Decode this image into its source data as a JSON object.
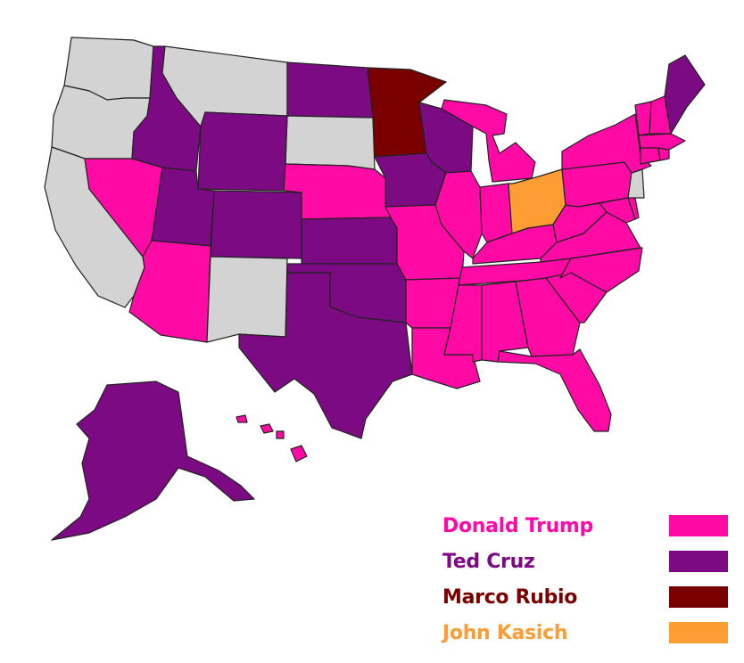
{
  "colors": {
    "unassigned": "#d3d3d3",
    "border": "#222222"
  },
  "candidates": [
    {
      "id": "trump",
      "label": "Donald Trump",
      "color": "#ff0aa5"
    },
    {
      "id": "cruz",
      "label": "Ted Cruz",
      "color": "#7c0a83"
    },
    {
      "id": "rubio",
      "label": "Marco Rubio",
      "color": "#7a0000"
    },
    {
      "id": "kasich",
      "label": "John Kasich",
      "color": "#ff9d35"
    }
  ],
  "states": [
    {
      "id": "WA",
      "winner": null
    },
    {
      "id": "OR",
      "winner": null
    },
    {
      "id": "CA",
      "winner": null
    },
    {
      "id": "MT",
      "winner": null
    },
    {
      "id": "SD",
      "winner": null
    },
    {
      "id": "NM",
      "winner": null
    },
    {
      "id": "NJ",
      "winner": null
    },
    {
      "id": "ID",
      "winner": "cruz"
    },
    {
      "id": "WY",
      "winner": "cruz"
    },
    {
      "id": "UT",
      "winner": "cruz"
    },
    {
      "id": "CO",
      "winner": "cruz"
    },
    {
      "id": "ND",
      "winner": "cruz"
    },
    {
      "id": "KS",
      "winner": "cruz"
    },
    {
      "id": "OK",
      "winner": "cruz"
    },
    {
      "id": "TX",
      "winner": "cruz"
    },
    {
      "id": "IA",
      "winner": "cruz"
    },
    {
      "id": "WI",
      "winner": "cruz"
    },
    {
      "id": "ME",
      "winner": "cruz"
    },
    {
      "id": "AK",
      "winner": "cruz"
    },
    {
      "id": "MN",
      "winner": "rubio"
    },
    {
      "id": "OH",
      "winner": "kasich"
    },
    {
      "id": "NV",
      "winner": "trump"
    },
    {
      "id": "AZ",
      "winner": "trump"
    },
    {
      "id": "NE",
      "winner": "trump"
    },
    {
      "id": "MO",
      "winner": "trump"
    },
    {
      "id": "AR",
      "winner": "trump"
    },
    {
      "id": "LA",
      "winner": "trump"
    },
    {
      "id": "MS",
      "winner": "trump"
    },
    {
      "id": "AL",
      "winner": "trump"
    },
    {
      "id": "GA",
      "winner": "trump"
    },
    {
      "id": "FL",
      "winner": "trump"
    },
    {
      "id": "SC",
      "winner": "trump"
    },
    {
      "id": "NC",
      "winner": "trump"
    },
    {
      "id": "TN",
      "winner": "trump"
    },
    {
      "id": "KY",
      "winner": "trump"
    },
    {
      "id": "IL",
      "winner": "trump"
    },
    {
      "id": "IN",
      "winner": "trump"
    },
    {
      "id": "MI",
      "winner": "trump"
    },
    {
      "id": "WV",
      "winner": "trump"
    },
    {
      "id": "VA",
      "winner": "trump"
    },
    {
      "id": "PA",
      "winner": "trump"
    },
    {
      "id": "NY",
      "winner": "trump"
    },
    {
      "id": "VT",
      "winner": "trump"
    },
    {
      "id": "NH",
      "winner": "trump"
    },
    {
      "id": "MA",
      "winner": "trump"
    },
    {
      "id": "CT",
      "winner": "trump"
    },
    {
      "id": "RI",
      "winner": "trump"
    },
    {
      "id": "MD",
      "winner": "trump"
    },
    {
      "id": "DE",
      "winner": "trump"
    },
    {
      "id": "HI",
      "winner": "trump"
    }
  ]
}
